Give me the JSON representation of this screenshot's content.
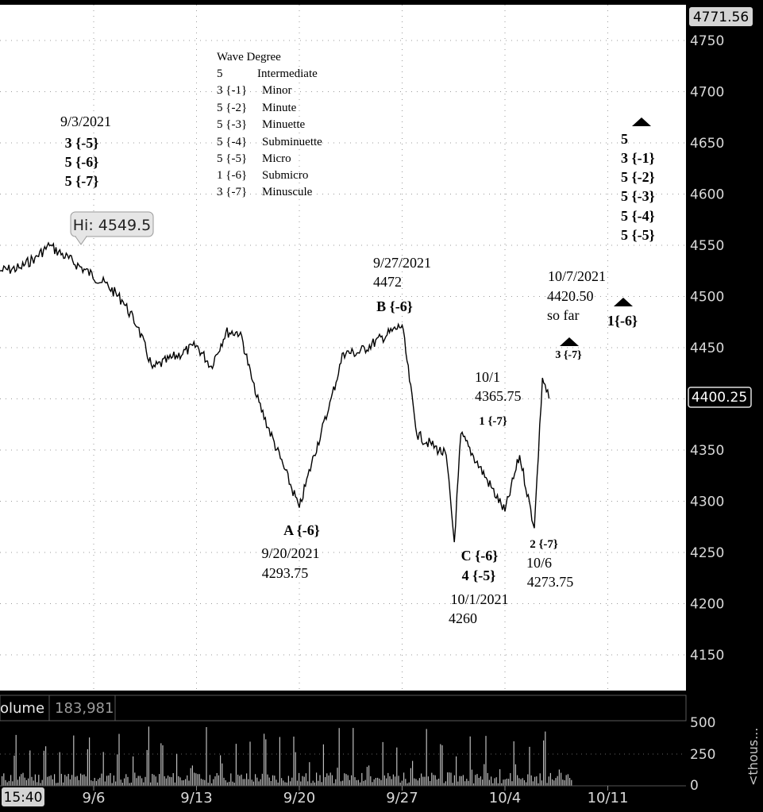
{
  "chart_data": [
    {
      "type": "line",
      "title": "",
      "xlabel": "",
      "ylabel": "",
      "ylim": [
        4115,
        4780
      ],
      "y_ticks": [
        "4150",
        "4200",
        "4250",
        "4300",
        "4350",
        "4400",
        "4450",
        "4500",
        "4550",
        "4600",
        "4650",
        "4700",
        "4750"
      ],
      "x_tick_labels": [
        "9/6",
        "9/13",
        "9/20",
        "9/27",
        "10/4",
        "10/11"
      ],
      "time_label": "15:40",
      "price_labels": {
        "top": "4771.56",
        "last": "4400.25"
      },
      "grid": true,
      "series": [
        {
          "points": [
            [
              "9/1",
              4528
            ],
            [
              "9/2",
              4538
            ],
            [
              "9/3",
              4549.5
            ],
            [
              "9/7",
              4510
            ],
            [
              "9/8",
              4495
            ],
            [
              "9/9",
              4470
            ],
            [
              "9/10",
              4430
            ],
            [
              "9/13",
              4452
            ],
            [
              "9/14",
              4432
            ],
            [
              "9/15",
              4465
            ],
            [
              "9/16",
              4465
            ],
            [
              "9/17",
              4405
            ],
            [
              "9/20",
              4293.75
            ],
            [
              "9/21",
              4345
            ],
            [
              "9/22",
              4390
            ],
            [
              "9/23",
              4445
            ],
            [
              "9/24",
              4445
            ],
            [
              "9/27",
              4472
            ],
            [
              "9/28",
              4365
            ],
            [
              "9/29",
              4355
            ],
            [
              "9/30",
              4345
            ],
            [
              "10/1",
              4260
            ],
            [
              "10/1",
              4365.75
            ],
            [
              "10/4",
              4290
            ],
            [
              "10/5",
              4345
            ],
            [
              "10/6",
              4273.75
            ],
            [
              "10/7",
              4420.5
            ],
            [
              "10/7",
              4400.25
            ]
          ]
        }
      ],
      "highlight": {
        "label": "Hi: 4549.5"
      },
      "annotations": {
        "wave_degree": {
          "title": "Wave Degree",
          "rows": [
            [
              "5",
              "Intermediate"
            ],
            [
              "3 {-1}",
              "Minor"
            ],
            [
              "5 {-2}",
              "Minute"
            ],
            [
              "5 {-3}",
              "Minuette"
            ],
            [
              "5 {-4}",
              "Subminuette"
            ],
            [
              "5 {-5}",
              "Micro"
            ],
            [
              "1 {-6}",
              "Submicro"
            ],
            [
              "3 {-7}",
              "Minuscule"
            ]
          ]
        },
        "sep3": {
          "date": "9/3/2021",
          "l1": "3 {-5}",
          "l2": "5 {-6}",
          "l3": "5 {-7}"
        },
        "a6": {
          "label": "A {-6}",
          "date": "9/20/2021",
          "value": "4293.75"
        },
        "b6": {
          "date": "9/27/2021",
          "value": "4472",
          "label": "B {-6}"
        },
        "oct1_high": {
          "date": "10/1",
          "value": "4365.75",
          "label": "1 {-7}"
        },
        "c6": {
          "l1": "C {-6}",
          "l2": "4 {-5}",
          "date": "10/1/2021",
          "value": "4260"
        },
        "w27": {
          "label": "2 {-7}",
          "date": "10/6",
          "value": "4273.75"
        },
        "oct7": {
          "date": "10/7/2021",
          "value": "4420.50",
          "note": "so far",
          "label": "3 {-7}"
        },
        "w16": {
          "label": "1{-6}"
        },
        "right_stack": [
          "5",
          "3 {-1}",
          "5 {-2}",
          "5 {-3}",
          "5 {-4}",
          "5 {-5}"
        ]
      }
    },
    {
      "type": "bar",
      "title": "",
      "header_label": "olume",
      "header_value": "183,981",
      "y_ticks": [
        "250"
      ],
      "y_tick_partial_top": "500",
      "y_tick_partial_bottom": "0",
      "unit_label": "<thous..."
    }
  ],
  "colors": {
    "background": "#000000",
    "price_plot": "#ffffff",
    "price_line": "#000000",
    "volume_bars": "#bdbdbd",
    "axis_text": "#d9d9d9"
  }
}
